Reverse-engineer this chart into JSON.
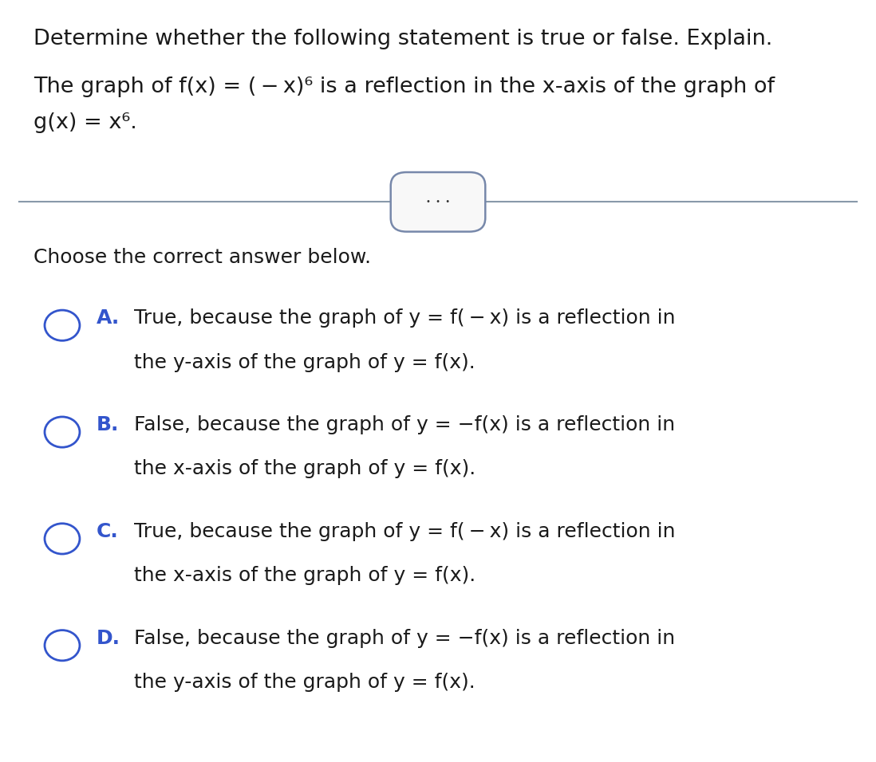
{
  "background_color": "#ffffff",
  "title_line": "Determine whether the following statement is true or false. Explain.",
  "statement_line1": "The graph of f(x) = ( − x)⁶ is a reflection in the x-axis of the graph of",
  "statement_line2": "g(x) = x⁶.",
  "choose_text": "Choose the correct answer below.",
  "options": [
    {
      "letter": "A.",
      "letter_color": "#3355cc",
      "line1": "True, because the graph of y = f( − x) is a reflection in",
      "line2": "the y-axis of the graph of y = f(x)."
    },
    {
      "letter": "B.",
      "letter_color": "#3355cc",
      "line1": "False, because the graph of y = −f(x) is a reflection in",
      "line2": "the x-axis of the graph of y = f(x)."
    },
    {
      "letter": "C.",
      "letter_color": "#3355cc",
      "line1": "True, because the graph of y = f( − x) is a reflection in",
      "line2": "the x-axis of the graph of y = f(x)."
    },
    {
      "letter": "D.",
      "letter_color": "#3355cc",
      "line1": "False, because the graph of y = −f(x) is a reflection in",
      "line2": "the y-axis of the graph of y = f(x)."
    }
  ],
  "title_fontsize": 19.5,
  "statement_fontsize": 19.5,
  "choose_fontsize": 18,
  "option_fontsize": 18,
  "text_color": "#1a1a1a",
  "circle_color": "#3355cc",
  "divider_color": "#8899aa",
  "btn_fill": "#f8f8f8",
  "btn_edge": "#7788aa"
}
